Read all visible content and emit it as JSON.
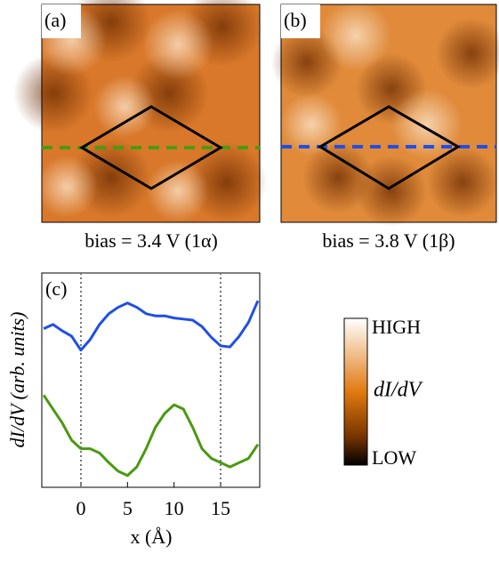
{
  "panels": [
    {
      "label": "(a)",
      "caption": "bias = 3.4 V (1α)"
    },
    {
      "label": "(b)",
      "caption": "bias = 3.8 V (1β)"
    }
  ],
  "chart_data": {
    "type": "line",
    "label": "(c)",
    "x_label": "x (Å)",
    "y_label": "dI/dV (arb. units)",
    "x": [
      -4,
      -3,
      -2,
      -1,
      0,
      1,
      2,
      3,
      4,
      5,
      6,
      7,
      8,
      9,
      10,
      11,
      12,
      13,
      14,
      15,
      16,
      17,
      18,
      19
    ],
    "series": [
      {
        "color": "#1f4fe6",
        "values": [
          7.4,
          7.6,
          7.3,
          7.05,
          6.4,
          6.9,
          7.6,
          8.1,
          8.4,
          8.6,
          8.4,
          8.1,
          8.0,
          8.0,
          7.9,
          7.85,
          7.8,
          7.5,
          7.0,
          6.6,
          6.55,
          7.05,
          7.7,
          8.7
        ]
      },
      {
        "color": "#4a9a10",
        "values": [
          4.3,
          3.65,
          3.0,
          2.2,
          1.8,
          1.8,
          1.6,
          1.15,
          0.75,
          0.55,
          0.95,
          1.8,
          2.8,
          3.45,
          3.85,
          3.65,
          2.8,
          1.8,
          1.35,
          1.15,
          0.95,
          1.15,
          1.35,
          2.0
        ]
      }
    ],
    "vlines": [
      0,
      15
    ],
    "xlim": [
      -4.2,
      19.2
    ],
    "xticks": [
      0,
      5,
      10,
      15
    ],
    "ylim": [
      0,
      10
    ]
  },
  "colorbar": {
    "high": "HIGH",
    "quantity": "dI/dV",
    "low": "LOW"
  }
}
